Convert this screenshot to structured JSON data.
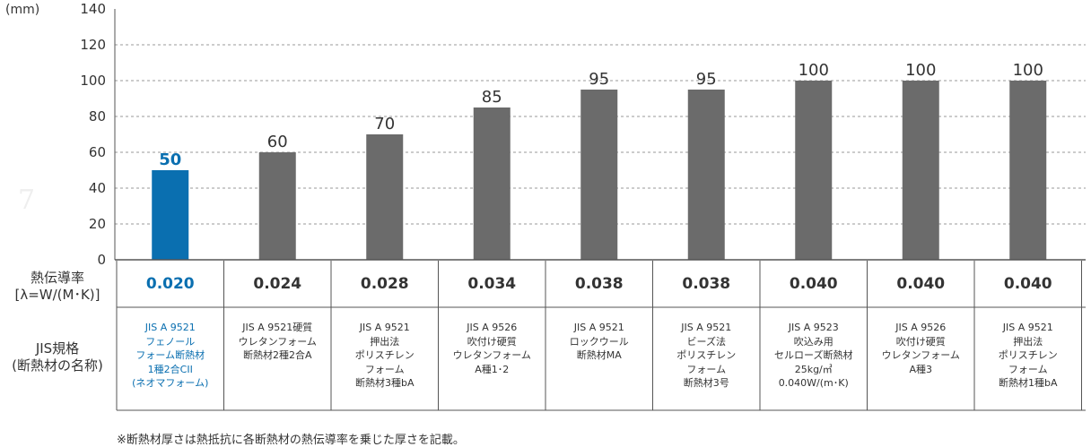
{
  "chart_data": {
    "type": "bar",
    "unit_label": "(mm)",
    "ylim": [
      0,
      140
    ],
    "yticks": [
      0,
      20,
      40,
      60,
      80,
      100,
      120,
      140
    ],
    "grid": true,
    "highlight_color": "#0a6fb0",
    "bar_color": "#6b6b6b",
    "values": [
      50,
      60,
      70,
      85,
      95,
      95,
      100,
      100,
      100
    ],
    "value_labels": [
      "50",
      "60",
      "70",
      "85",
      "95",
      "95",
      "100",
      "100",
      "100"
    ],
    "highlight_index": 0
  },
  "table": {
    "conductivity_header_line1": "熱伝導率",
    "conductivity_header_line2": "[λ=W/(M･K)]",
    "standard_header_line1": "JIS規格",
    "standard_header_line2": "(断熱材の名称)",
    "conductivity": [
      "0.020",
      "0.024",
      "0.028",
      "0.034",
      "0.038",
      "0.038",
      "0.040",
      "0.040",
      "0.040"
    ],
    "standards": [
      "JIS A 9521\nフェノール\nフォーム断熱材\n1種2合CII\n(ネオマフォーム)",
      "JIS A 9521硬質\nウレタンフォーム\n断熱材2種2合A",
      "JIS A 9521\n押出法\nポリスチレン\nフォーム\n断熱材3種bA",
      "JIS A 9526\n吹付け硬質\nウレタンフォーム\nA種1･2",
      "JIS A 9521\nロックウール\n断熱材MA",
      "JIS A 9521\nビーズ法\nポリスチレン\nフォーム\n断熱材3号",
      "JIS A 9523\n吹込み用\nセルローズ断熱材\n25kg/㎥\n0.040W/(m･K)",
      "JIS A 9526\n吹付け硬質\nウレタンフォーム\nA種3",
      "JIS A 9521\n押出法\nポリスチレン\nフォーム\n断熱材1種bA"
    ]
  },
  "footnote": "※断熱材厚さは熱抵抗に各断熱材の熱伝導率を乗じた厚さを記載。",
  "watermark": "7"
}
